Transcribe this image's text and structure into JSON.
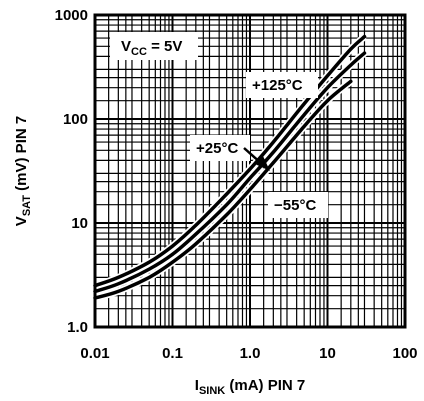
{
  "chart_data": {
    "type": "line",
    "xscale": "log",
    "yscale": "log",
    "xlim": [
      0.01,
      100
    ],
    "ylim": [
      1,
      1000
    ],
    "grid": true,
    "xticks": [
      "0.01",
      "0.1",
      "1.0",
      "10",
      "100"
    ],
    "yticks": [
      "1.0",
      "10",
      "100",
      "1000"
    ],
    "xlabel": {
      "main": "I",
      "sub": "SINK",
      "rest": " (mA) PIN 7"
    },
    "ylabel": {
      "main": "V",
      "sub": "SAT",
      "rest": " (mV) PIN 7"
    },
    "condition": {
      "main": "V",
      "sub": "CC",
      "rest": " = 5V"
    },
    "series": [
      {
        "name": "+125°C",
        "x": [
          0.01,
          0.02,
          0.05,
          0.1,
          0.2,
          0.5,
          1,
          2,
          5,
          10,
          20,
          30
        ],
        "y": [
          2.5,
          3.0,
          4.2,
          6.0,
          9.5,
          19,
          33,
          60,
          140,
          260,
          470,
          620
        ]
      },
      {
        "name": "+25°C",
        "x": [
          0.01,
          0.02,
          0.05,
          0.1,
          0.2,
          0.5,
          1,
          2,
          5,
          10,
          20,
          30
        ],
        "y": [
          2.2,
          2.6,
          3.6,
          5.0,
          7.8,
          15,
          27,
          48,
          110,
          200,
          330,
          430
        ]
      },
      {
        "name": "−55°C",
        "x": [
          0.01,
          0.02,
          0.05,
          0.1,
          0.2,
          0.5,
          1,
          2,
          5,
          10,
          20
        ],
        "y": [
          1.9,
          2.2,
          3.0,
          4.2,
          6.3,
          12,
          21,
          38,
          85,
          150,
          230
        ]
      }
    ]
  }
}
